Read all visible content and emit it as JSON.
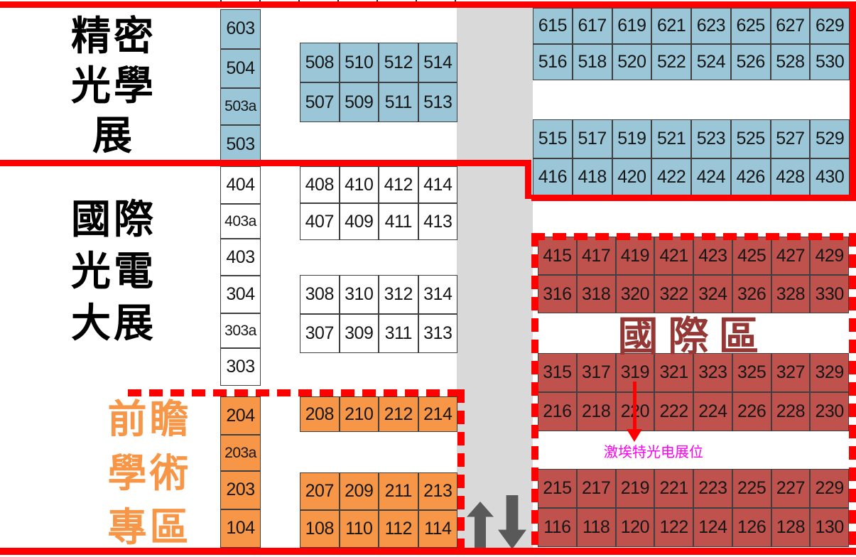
{
  "zones": {
    "precision_optics_show": {
      "lines": [
        "精密",
        "光學",
        "展"
      ]
    },
    "intl_optoelectronics_expo": {
      "lines": [
        "國際",
        "光電",
        "大展"
      ]
    },
    "academic_zone": {
      "lines": [
        "前瞻",
        "學術",
        "專區"
      ]
    },
    "international_area": {
      "label": "國際區"
    }
  },
  "annotation": {
    "booth_note": "激埃特光电展位"
  },
  "icons": {
    "escalator_up": "up-arrow",
    "escalator_down": "down-arrow",
    "booth_pointer": "down-pointer-arrow"
  },
  "booths": {
    "blue_left_column": [
      [
        "603"
      ],
      [
        "504"
      ],
      [
        "503a"
      ],
      [
        "503"
      ]
    ],
    "blue_mid_block": [
      [
        "508",
        "510",
        "512",
        "514"
      ],
      [
        "507",
        "509",
        "511",
        "513"
      ]
    ],
    "blue_right_top": [
      [
        "615",
        "617",
        "619",
        "621",
        "623",
        "625",
        "627",
        "629"
      ],
      [
        "516",
        "518",
        "520",
        "522",
        "524",
        "526",
        "528",
        "530"
      ]
    ],
    "blue_right_mid": [
      [
        "515",
        "517",
        "519",
        "521",
        "523",
        "525",
        "527",
        "529"
      ],
      [
        "416",
        "418",
        "420",
        "422",
        "424",
        "426",
        "428",
        "430"
      ]
    ],
    "white_left_column": [
      [
        "404"
      ],
      [
        "403a"
      ],
      [
        "403"
      ],
      [
        "304"
      ],
      [
        "303a"
      ],
      [
        "303"
      ]
    ],
    "white_mid_top": [
      [
        "408",
        "410",
        "412",
        "414"
      ],
      [
        "407",
        "409",
        "411",
        "413"
      ]
    ],
    "white_mid_bottom": [
      [
        "308",
        "310",
        "312",
        "314"
      ],
      [
        "307",
        "309",
        "311",
        "313"
      ]
    ],
    "orange_left_column": [
      [
        "204"
      ],
      [
        "203a"
      ],
      [
        "203"
      ],
      [
        "104"
      ]
    ],
    "orange_mid_top": [
      [
        "208",
        "210",
        "212",
        "214"
      ]
    ],
    "orange_mid_bottom": [
      [
        "207",
        "209",
        "211",
        "213"
      ],
      [
        "108",
        "110",
        "112",
        "114"
      ]
    ],
    "red_top_block": [
      [
        "415",
        "417",
        "419",
        "421",
        "423",
        "425",
        "427",
        "429"
      ],
      [
        "316",
        "318",
        "320",
        "322",
        "324",
        "326",
        "328",
        "330"
      ]
    ],
    "red_middle_block": [
      [
        "315",
        "317",
        "319",
        "321",
        "323",
        "325",
        "327",
        "329"
      ],
      [
        "216",
        "218",
        "220",
        "222",
        "224",
        "226",
        "228",
        "230"
      ]
    ],
    "red_bottom_block": [
      [
        "215",
        "217",
        "219",
        "221",
        "223",
        "225",
        "227",
        "229"
      ],
      [
        "116",
        "118",
        "120",
        "122",
        "124",
        "126",
        "128",
        "130"
      ]
    ]
  },
  "colors": {
    "blue_booth": "#9AC6D7",
    "orange_booth": "#F79646",
    "red_booth": "#C0524E",
    "outline_red": "#FF0000",
    "magenta_note": "#FF00F0",
    "intl_label": "#953735",
    "corridor_gray": "#D9D9D9",
    "arrow_gray": "#595959",
    "booth_border": "#3F3F3F",
    "academic_title_orange": "#F79646"
  }
}
